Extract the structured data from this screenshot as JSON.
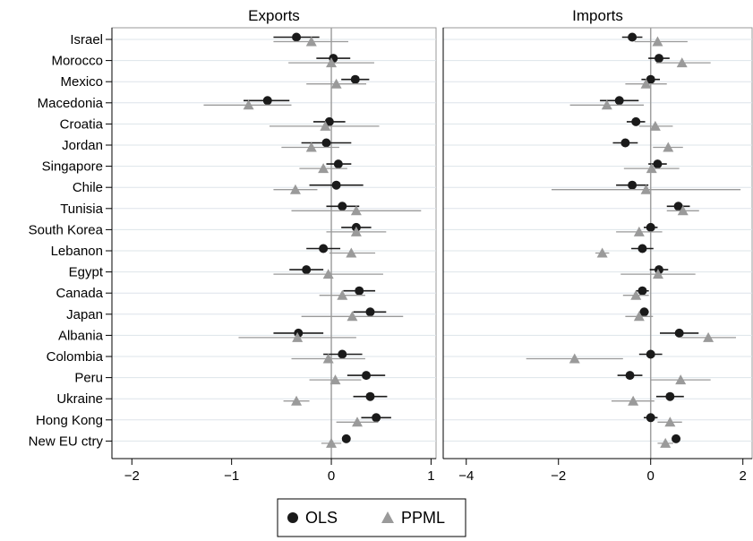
{
  "chart_data": {
    "type": "scatter",
    "categories": [
      "Israel",
      "Morocco",
      "Mexico",
      "Macedonia",
      "Croatia",
      "Jordan",
      "Singapore",
      "Chile",
      "Tunisia",
      "South Korea",
      "Lebanon",
      "Egypt",
      "Canada",
      "Japan",
      "Albania",
      "Colombia",
      "Peru",
      "Ukraine",
      "Hong Kong",
      "New EU ctry"
    ],
    "legend": {
      "position": "bottom",
      "entries": [
        "OLS",
        "PPML"
      ]
    },
    "colors": {
      "OLS": "#1a1a1a",
      "PPML": "#9a9a9a"
    },
    "panels": [
      {
        "title": "Exports",
        "xlim": [
          -2.2,
          1.05
        ],
        "xticks": [
          -2,
          -1,
          0,
          1
        ],
        "xtick_labels": [
          "−2",
          "−1",
          "0",
          "1"
        ],
        "series": [
          {
            "name": "OLS",
            "values": [
              -0.35,
              0.02,
              0.24,
              -0.64,
              -0.02,
              -0.05,
              0.07,
              0.05,
              0.11,
              0.25,
              -0.08,
              -0.25,
              0.28,
              0.39,
              -0.33,
              0.11,
              0.35,
              0.39,
              0.45,
              0.15
            ],
            "low": [
              -0.58,
              -0.15,
              0.1,
              -0.88,
              -0.18,
              -0.3,
              -0.05,
              -0.22,
              -0.05,
              0.1,
              -0.25,
              -0.42,
              0.12,
              0.22,
              -0.58,
              -0.08,
              0.16,
              0.22,
              0.3,
              0.15
            ],
            "high": [
              -0.12,
              0.19,
              0.38,
              -0.42,
              0.14,
              0.2,
              0.2,
              0.32,
              0.28,
              0.4,
              0.09,
              -0.08,
              0.44,
              0.55,
              -0.08,
              0.31,
              0.54,
              0.56,
              0.6,
              0.15
            ]
          },
          {
            "name": "PPML",
            "values": [
              -0.2,
              0.0,
              0.05,
              -0.83,
              -0.06,
              -0.2,
              -0.08,
              -0.36,
              0.25,
              0.25,
              0.2,
              -0.03,
              0.11,
              0.21,
              -0.34,
              -0.03,
              0.04,
              -0.35,
              0.26,
              0.0
            ],
            "low": [
              -0.58,
              -0.43,
              -0.25,
              -1.28,
              -0.62,
              -0.5,
              -0.32,
              -0.58,
              -0.4,
              -0.05,
              -0.02,
              -0.58,
              -0.12,
              -0.3,
              -0.93,
              -0.4,
              -0.22,
              -0.48,
              0.05,
              -0.1
            ],
            "high": [
              0.17,
              0.43,
              0.35,
              -0.4,
              0.48,
              0.08,
              0.16,
              -0.14,
              0.9,
              0.55,
              0.44,
              0.52,
              0.34,
              0.72,
              0.25,
              0.34,
              0.3,
              -0.22,
              0.47,
              0.1
            ]
          }
        ]
      },
      {
        "title": "Imports",
        "xlim": [
          -4.5,
          2.2
        ],
        "xticks": [
          -4,
          -2,
          0,
          2
        ],
        "xtick_labels": [
          "−4",
          "−2",
          "0",
          "2"
        ],
        "series": [
          {
            "name": "OLS",
            "values": [
              -0.4,
              0.18,
              0.0,
              -0.68,
              -0.32,
              -0.55,
              0.15,
              -0.4,
              0.6,
              0.0,
              -0.18,
              0.18,
              -0.18,
              -0.14,
              0.62,
              0.0,
              -0.45,
              0.42,
              0.0,
              0.55
            ],
            "low": [
              -0.62,
              -0.05,
              -0.2,
              -1.1,
              -0.52,
              -0.82,
              -0.05,
              -0.75,
              0.35,
              -0.15,
              -0.42,
              -0.02,
              -0.32,
              -0.24,
              0.2,
              -0.25,
              -0.72,
              0.12,
              -0.15,
              0.55
            ],
            "high": [
              -0.18,
              0.41,
              0.2,
              -0.26,
              -0.12,
              -0.28,
              0.35,
              -0.05,
              0.85,
              0.15,
              0.06,
              0.38,
              -0.04,
              -0.04,
              1.04,
              0.25,
              -0.18,
              0.72,
              0.15,
              0.55
            ],
            "_note": ""
          },
          {
            "name": "PPML",
            "values": [
              0.15,
              0.68,
              -0.1,
              -0.95,
              0.1,
              0.38,
              0.02,
              -0.1,
              0.7,
              -0.25,
              -1.05,
              0.16,
              -0.32,
              -0.25,
              1.25,
              -1.65,
              0.65,
              -0.38,
              0.42,
              0.32
            ],
            "low": [
              -0.35,
              0.12,
              -0.55,
              -1.75,
              -0.25,
              0.05,
              -0.58,
              -2.15,
              0.35,
              -0.75,
              -1.2,
              -0.65,
              -0.6,
              -0.55,
              0.65,
              -2.7,
              0.0,
              -0.85,
              0.15,
              0.15
            ],
            "high": [
              0.8,
              1.3,
              0.35,
              -0.15,
              0.48,
              0.7,
              0.62,
              1.95,
              1.05,
              0.25,
              -0.9,
              0.97,
              -0.04,
              0.05,
              1.85,
              -0.6,
              1.3,
              0.08,
              0.68,
              0.49
            ]
          }
        ]
      }
    ]
  }
}
